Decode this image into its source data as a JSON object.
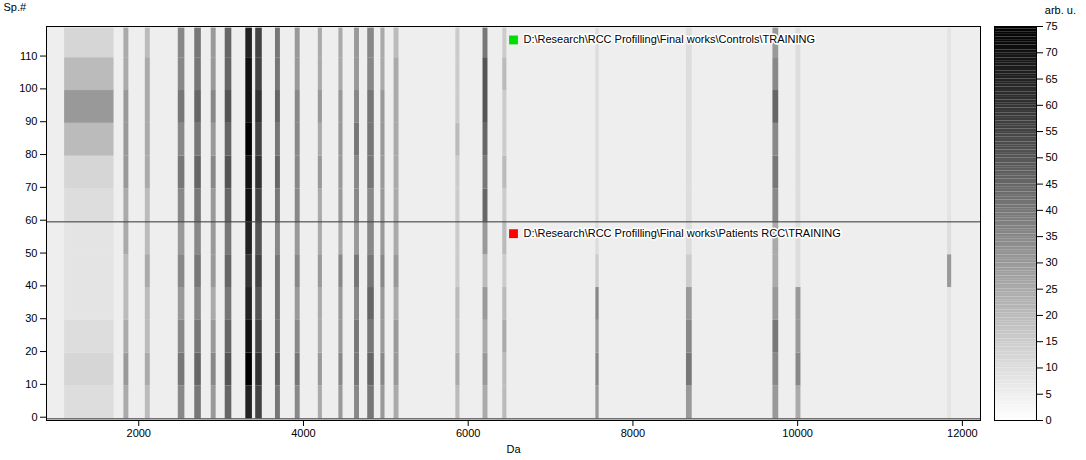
{
  "chart_data": {
    "type": "heatmap",
    "x_label": "Da",
    "y_label": "Sp.#",
    "xlim": [
      880,
      12220
    ],
    "xticks": [
      2000,
      4000,
      6000,
      8000,
      10000,
      12000
    ],
    "ylim": [
      -1,
      119
    ],
    "yticks": [
      0,
      10,
      20,
      30,
      40,
      50,
      60,
      70,
      80,
      90,
      100,
      110
    ],
    "colorbar": {
      "label": "arb. u.",
      "range": [
        0,
        75
      ],
      "ticks": [
        0,
        5,
        10,
        15,
        20,
        25,
        30,
        35,
        40,
        45,
        50,
        55,
        60,
        65,
        70,
        75
      ]
    },
    "background": 5,
    "groups": [
      {
        "name": "D:\\Research\\RCC Profilling\\Final works\\Controls\\TRAINING",
        "color": "#00dd00",
        "spectra": [
          59.5,
          118.5
        ]
      },
      {
        "name": "D:\\Research\\RCC Profilling\\Final works\\Patients RCC\\TRAINING",
        "color": "#ff0000",
        "spectra": [
          -0.5,
          59.5
        ]
      }
    ],
    "mass_bins": [
      [
        1100,
        1700
      ],
      [
        1820,
        1880
      ],
      [
        2080,
        2140
      ],
      [
        2480,
        2560
      ],
      [
        2680,
        2760
      ],
      [
        2880,
        2940
      ],
      [
        3050,
        3130
      ],
      [
        3300,
        3380
      ],
      [
        3420,
        3500
      ],
      [
        3660,
        3720
      ],
      [
        3900,
        3960
      ],
      [
        4180,
        4230
      ],
      [
        4430,
        4480
      ],
      [
        4620,
        4680
      ],
      [
        4780,
        4860
      ],
      [
        4940,
        4990
      ],
      [
        5100,
        5160
      ],
      [
        5850,
        5900
      ],
      [
        6180,
        6240
      ],
      [
        6420,
        6470
      ],
      [
        7550,
        7590
      ],
      [
        8650,
        8720
      ],
      [
        9700,
        9770
      ],
      [
        9980,
        10040
      ],
      [
        11820,
        11870
      ]
    ],
    "spectrum_bins": [
      -0.5,
      9.5,
      19.5,
      29.5,
      39.5,
      49.5,
      59.5,
      69.5,
      79.5,
      89.5,
      99.5,
      109.5,
      118.5
    ],
    "cells": [
      [
        10,
        25,
        20,
        35,
        40,
        30,
        45,
        65,
        55,
        40,
        35,
        25,
        30,
        35,
        40,
        30,
        25,
        20,
        25,
        20,
        30,
        30,
        30,
        25,
        8
      ],
      [
        12,
        30,
        25,
        40,
        45,
        35,
        50,
        75,
        60,
        45,
        40,
        30,
        35,
        40,
        45,
        35,
        30,
        25,
        30,
        20,
        35,
        40,
        35,
        35,
        8
      ],
      [
        10,
        25,
        20,
        35,
        40,
        30,
        45,
        70,
        55,
        40,
        35,
        25,
        30,
        40,
        40,
        30,
        30,
        20,
        25,
        25,
        30,
        35,
        40,
        30,
        8
      ],
      [
        8,
        20,
        20,
        30,
        35,
        25,
        40,
        65,
        50,
        40,
        30,
        25,
        30,
        35,
        45,
        30,
        25,
        20,
        30,
        20,
        35,
        30,
        30,
        30,
        8
      ],
      [
        8,
        20,
        25,
        35,
        40,
        30,
        45,
        60,
        55,
        40,
        35,
        30,
        35,
        40,
        40,
        35,
        30,
        15,
        20,
        15,
        15,
        15,
        25,
        10,
        30
      ],
      [
        8,
        25,
        20,
        30,
        35,
        30,
        40,
        65,
        50,
        35,
        30,
        25,
        25,
        30,
        35,
        30,
        25,
        15,
        30,
        20,
        10,
        10,
        25,
        10,
        10
      ],
      [
        10,
        25,
        20,
        35,
        40,
        30,
        45,
        70,
        55,
        40,
        35,
        25,
        30,
        35,
        35,
        30,
        25,
        15,
        45,
        15,
        10,
        10,
        35,
        10,
        8
      ],
      [
        12,
        30,
        25,
        40,
        45,
        35,
        50,
        70,
        60,
        45,
        35,
        30,
        30,
        35,
        40,
        30,
        25,
        15,
        40,
        20,
        10,
        10,
        40,
        10,
        8
      ],
      [
        20,
        30,
        25,
        35,
        40,
        30,
        45,
        75,
        55,
        40,
        35,
        25,
        30,
        40,
        40,
        30,
        25,
        20,
        45,
        15,
        10,
        10,
        35,
        10,
        8
      ],
      [
        30,
        30,
        25,
        40,
        45,
        35,
        50,
        70,
        60,
        45,
        35,
        30,
        30,
        35,
        40,
        30,
        25,
        15,
        50,
        15,
        10,
        10,
        45,
        10,
        8
      ],
      [
        20,
        25,
        25,
        35,
        40,
        30,
        45,
        70,
        55,
        40,
        30,
        25,
        25,
        30,
        35,
        25,
        25,
        15,
        50,
        20,
        10,
        10,
        35,
        10,
        8
      ],
      [
        12,
        25,
        20,
        35,
        40,
        30,
        45,
        65,
        55,
        40,
        30,
        25,
        25,
        30,
        35,
        25,
        20,
        15,
        40,
        15,
        10,
        10,
        30,
        10,
        8
      ]
    ]
  }
}
